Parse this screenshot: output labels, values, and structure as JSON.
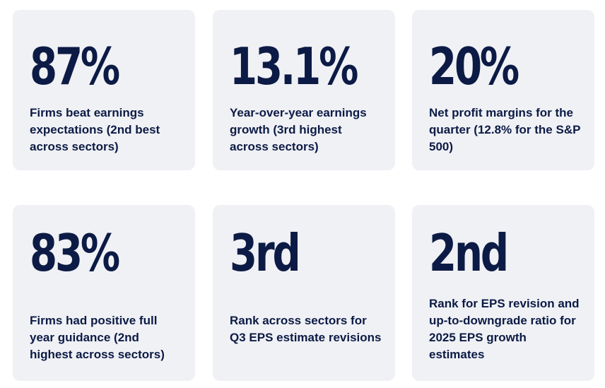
{
  "cards": [
    {
      "stat": "87%",
      "description": "Firms beat earnings expectations (2nd best across sectors)"
    },
    {
      "stat": "13.1%",
      "description": "Year-over-year earnings growth (3rd highest across sectors)"
    },
    {
      "stat": "20%",
      "description": "Net profit margins for the quarter (12.8% for the S&P 500)"
    },
    {
      "stat": "83%",
      "description": "Firms had positive full year guidance (2nd highest across sectors)"
    },
    {
      "stat": "3rd",
      "description": "Rank across sectors for Q3 EPS estimate revisions"
    },
    {
      "stat": "2nd",
      "description": "Rank for EPS revision and up-to-downgrade ratio for 2025 EPS growth estimates"
    }
  ]
}
